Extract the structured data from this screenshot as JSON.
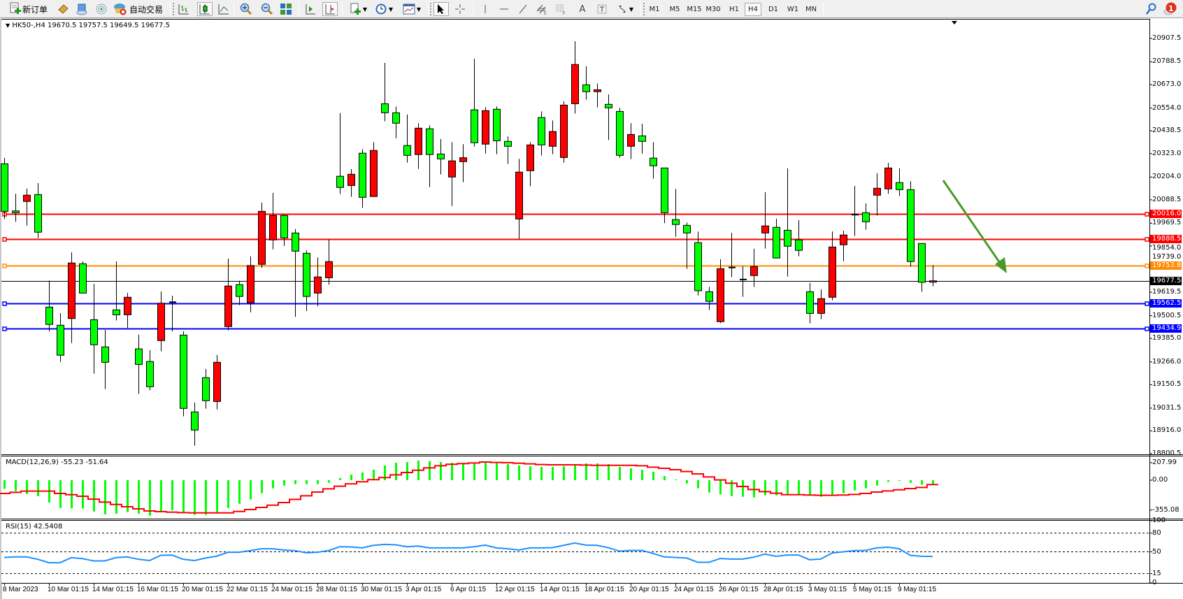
{
  "toolbar": {
    "new_order_label": "新订单",
    "auto_trading_label": "自动交易",
    "timeframes": [
      "M1",
      "M5",
      "M15",
      "M30",
      "H1",
      "H4",
      "D1",
      "W1",
      "MN"
    ],
    "active_timeframe": "H4",
    "notification_count": "1",
    "icons": [
      "new-order-icon",
      "market-watch-icon",
      "data-window-icon",
      "signals-icon",
      "auto-trading-icon",
      "bar-chart-icon",
      "candlestick-icon",
      "line-chart-icon",
      "zoom-in-icon",
      "zoom-out-icon",
      "tile-windows-icon",
      "auto-scroll-icon",
      "chart-shift-icon",
      "indicators-icon",
      "periods-icon",
      "templates-icon",
      "cursor-icon",
      "crosshair-icon",
      "vertical-line-icon",
      "horizontal-line-icon",
      "trendline-icon",
      "equidistant-channel-icon",
      "fibonacci-icon",
      "text-icon",
      "text-label-icon",
      "arrows-icon",
      "search-icon",
      "notification-icon"
    ]
  },
  "chart_data": {
    "type": "candlestick",
    "header": "HK50-,H4  19670.5 19757.5 19649.5 19677.5",
    "symbol": "HK50-",
    "timeframe": "H4",
    "colors": {
      "bull": "#ff0000",
      "bear": "#00ff00",
      "wick": "#000000",
      "macd_hist": "#00ff00",
      "macd_signal": "#ff0000",
      "rsi": "#1e90ff",
      "arrow": "#4a9a2a"
    },
    "price": {
      "ylim": [
        18797,
        21003
      ],
      "ticks": [
        "20907.5",
        "20788.5",
        "20673.0",
        "20554.0",
        "20438.5",
        "20323.0",
        "20204.0",
        "20088.5",
        "19969.5",
        "19854.0",
        "19739.0",
        "19619.5",
        "19500.5",
        "19385.0",
        "19266.0",
        "19150.5",
        "19031.5",
        "18916.0",
        "18800.5"
      ],
      "candles": [
        [
          20271,
          20301,
          19991,
          20030
        ],
        [
          20032,
          20119,
          19977,
          20023
        ],
        [
          20080,
          20145,
          19958,
          20112
        ],
        [
          20115,
          20173,
          19894,
          19924
        ],
        [
          19544,
          19679,
          19420,
          19456
        ],
        [
          19452,
          19514,
          19266,
          19300
        ],
        [
          19486,
          19822,
          19362,
          19768
        ],
        [
          19764,
          19776,
          19615,
          19615
        ],
        [
          19480,
          19662,
          19206,
          19353
        ],
        [
          19342,
          19428,
          19128,
          19264
        ],
        [
          19530,
          19776,
          19476,
          19505
        ],
        [
          19505,
          19616,
          19438,
          19594
        ],
        [
          19332,
          19404,
          19104,
          19253
        ],
        [
          19268,
          19326,
          19121,
          19140
        ],
        [
          19374,
          19623,
          19320,
          19564
        ],
        [
          19567,
          19602,
          19420,
          19569
        ],
        [
          19402,
          19421,
          18990,
          19030
        ],
        [
          19012,
          19060,
          18841,
          18920
        ],
        [
          19186,
          19230,
          19029,
          19069
        ],
        [
          19065,
          19301,
          19025,
          19264
        ],
        [
          19445,
          19790,
          19426,
          19651
        ],
        [
          19658,
          19678,
          19554,
          19598
        ],
        [
          19566,
          19802,
          19518,
          19755
        ],
        [
          19761,
          20074,
          19743,
          20030
        ],
        [
          19885,
          20124,
          19837,
          20009
        ],
        [
          20009,
          20012,
          19855,
          19895
        ],
        [
          19920,
          19940,
          19495,
          19828
        ],
        [
          19817,
          19832,
          19524,
          19598
        ],
        [
          19615,
          19796,
          19548,
          19697
        ],
        [
          19693,
          19887,
          19658,
          19775
        ],
        [
          20208,
          20528,
          20118,
          20151
        ],
        [
          20161,
          20244,
          20104,
          20218
        ],
        [
          20325,
          20346,
          20047,
          20101
        ],
        [
          20105,
          20381,
          20105,
          20339
        ],
        [
          20576,
          20783,
          20487,
          20530
        ],
        [
          20530,
          20562,
          20401,
          20477
        ],
        [
          20364,
          20521,
          20277,
          20314
        ],
        [
          20318,
          20477,
          20245,
          20452
        ],
        [
          20449,
          20466,
          20153,
          20318
        ],
        [
          20321,
          20397,
          20217,
          20296
        ],
        [
          20204,
          20381,
          20057,
          20286
        ],
        [
          20282,
          20371,
          20178,
          20302
        ],
        [
          20545,
          20805,
          20359,
          20378
        ],
        [
          20371,
          20559,
          20323,
          20541
        ],
        [
          20548,
          20562,
          20320,
          20388
        ],
        [
          20385,
          20410,
          20270,
          20360
        ],
        [
          19991,
          20296,
          19891,
          20229
        ],
        [
          20236,
          20381,
          20157,
          20367
        ],
        [
          20506,
          20537,
          20313,
          20367
        ],
        [
          20360,
          20491,
          20320,
          20435
        ],
        [
          20303,
          20587,
          20277,
          20569
        ],
        [
          20576,
          20893,
          20526,
          20775
        ],
        [
          20672,
          20766,
          20597,
          20637
        ],
        [
          20637,
          20679,
          20558,
          20647
        ],
        [
          20573,
          20623,
          20391,
          20555
        ],
        [
          20537,
          20555,
          20302,
          20314
        ],
        [
          20360,
          20477,
          20295,
          20420
        ],
        [
          20413,
          20474,
          20323,
          20385
        ],
        [
          20300,
          20381,
          20196,
          20261
        ],
        [
          20250,
          20250,
          19970,
          20023
        ],
        [
          19988,
          20144,
          19901,
          19963
        ],
        [
          19959,
          19973,
          19738,
          19920
        ],
        [
          19871,
          19927,
          19603,
          19627
        ],
        [
          19622,
          19647,
          19529,
          19573
        ],
        [
          19470,
          19787,
          19463,
          19739
        ],
        [
          19744,
          19921,
          19696,
          19745
        ],
        [
          19683,
          19752,
          19596,
          19684
        ],
        [
          19704,
          19840,
          19646,
          19750
        ],
        [
          19920,
          20127,
          19841,
          19956
        ],
        [
          19949,
          19992,
          19793,
          19793
        ],
        [
          19934,
          20248,
          19699,
          19853
        ],
        [
          19885,
          19985,
          19802,
          19832
        ],
        [
          19622,
          19666,
          19461,
          19512
        ],
        [
          19512,
          19634,
          19483,
          19587
        ],
        [
          19594,
          19928,
          19579,
          19849
        ],
        [
          19860,
          19932,
          19777,
          19910
        ],
        [
          20012,
          20159,
          19905,
          20013
        ],
        [
          20023,
          20070,
          19937,
          19977
        ],
        [
          20112,
          20223,
          20008,
          20147
        ],
        [
          20144,
          20276,
          20119,
          20250
        ],
        [
          20176,
          20248,
          20108,
          20140
        ],
        [
          20140,
          20183,
          19749,
          19775
        ],
        [
          19867,
          19867,
          19622,
          19670
        ],
        [
          19670.5,
          19757.5,
          19649.5,
          19677.5
        ]
      ],
      "hlines": [
        {
          "value": 20016.0,
          "label": "20016.0",
          "color": "#ff0000"
        },
        {
          "value": 19888.5,
          "label": "19888.5",
          "color": "#ff0000"
        },
        {
          "value": 19753.8,
          "label": "19753.8",
          "color": "#ff8c00"
        },
        {
          "value": 19562.5,
          "label": "19562.5",
          "color": "#0000ff"
        },
        {
          "value": 19434.9,
          "label": "19434.9",
          "color": "#0000ff"
        }
      ],
      "current": {
        "value": 19677.5,
        "label": "19677.5",
        "color": "#000000"
      }
    },
    "macd": {
      "title": "MACD(12,26,9) -55.23 -51.64",
      "ylim": [
        -457,
        291
      ],
      "ticks": [
        {
          "value": 207.99,
          "label": "207.99"
        },
        {
          "value": 0,
          "label": "0.00"
        },
        {
          "value": -355.08,
          "label": "-355.08"
        }
      ],
      "histogram": [
        -103,
        -130,
        -164,
        -191,
        -266,
        -330,
        -335,
        -338,
        -372,
        -405,
        -399,
        -380,
        -399,
        -421,
        -372,
        -358,
        -383,
        -413,
        -413,
        -380,
        -330,
        -280,
        -230,
        -155,
        -97,
        -64,
        -47,
        -47,
        -47,
        -31,
        25,
        67,
        92,
        125,
        175,
        208,
        216,
        233,
        225,
        216,
        208,
        191,
        200,
        208,
        208,
        191,
        175,
        166,
        158,
        158,
        166,
        183,
        200,
        200,
        191,
        158,
        141,
        125,
        100,
        50,
        8,
        -39,
        -97,
        -147,
        -169,
        -189,
        -197,
        -205,
        -180,
        -180,
        -169,
        -169,
        -180,
        -197,
        -172,
        -155,
        -122,
        -97,
        -64,
        -22,
        -6,
        -31,
        -55,
        -55.23
      ],
      "signal": [
        -158,
        -144,
        -130,
        -130,
        -130,
        -158,
        -172,
        -191,
        -225,
        -261,
        -289,
        -316,
        -341,
        -366,
        -374,
        -380,
        -385,
        -388,
        -388,
        -388,
        -388,
        -372,
        -349,
        -324,
        -297,
        -266,
        -228,
        -186,
        -141,
        -103,
        -72,
        -44,
        -19,
        6,
        31,
        64,
        92,
        119,
        147,
        172,
        189,
        197,
        205,
        216,
        211,
        208,
        202,
        194,
        186,
        183,
        183,
        183,
        180,
        177,
        177,
        177,
        177,
        172,
        155,
        141,
        125,
        103,
        75,
        39,
        3,
        -36,
        -75,
        -111,
        -136,
        -155,
        -172,
        -172,
        -177,
        -180,
        -180,
        -177,
        -169,
        -158,
        -141,
        -128,
        -114,
        -100,
        -86,
        -51.64
      ]
    },
    "rsi": {
      "title": "RSI(15) 42.5408",
      "ylim": [
        0,
        100
      ],
      "levels": [
        80,
        50,
        15
      ],
      "ticks": [
        "100",
        "80",
        "50",
        "15",
        "0"
      ],
      "values": [
        41,
        41.8,
        41.8,
        38,
        32.5,
        32.5,
        40.7,
        39,
        35.4,
        35.4,
        40.7,
        41.8,
        38,
        36,
        44.4,
        44.8,
        38,
        36,
        40,
        43,
        49.3,
        49.3,
        52,
        54.9,
        54.9,
        53,
        51.9,
        48.5,
        49.3,
        52,
        58.2,
        57.8,
        56.3,
        60.4,
        62,
        61.2,
        58.2,
        59.3,
        56.3,
        56.3,
        56.3,
        56.3,
        58.2,
        60.8,
        56.3,
        54.9,
        53,
        56.3,
        56.3,
        56.7,
        60.4,
        64.2,
        60.8,
        60.4,
        56.7,
        51.1,
        52.2,
        52.2,
        47.4,
        41.8,
        41,
        40,
        33.2,
        33.2,
        39.2,
        38.4,
        38.4,
        41.4,
        46.3,
        42.9,
        44.8,
        44.8,
        37.3,
        38.4,
        48.1,
        50,
        51.9,
        52.2,
        56.3,
        57.5,
        54.9,
        44.4,
        42.9,
        42.54
      ]
    },
    "time_labels": [
      {
        "bar": 0,
        "label": "8 Mar 2023"
      },
      {
        "bar": 4,
        "label": "10 Mar 01:15"
      },
      {
        "bar": 8,
        "label": "14 Mar 01:15"
      },
      {
        "bar": 12,
        "label": "16 Mar 01:15"
      },
      {
        "bar": 16,
        "label": "20 Mar 01:15"
      },
      {
        "bar": 20,
        "label": "22 Mar 01:15"
      },
      {
        "bar": 24,
        "label": "24 Mar 01:15"
      },
      {
        "bar": 28,
        "label": "28 Mar 01:15"
      },
      {
        "bar": 32,
        "label": "30 Mar 01:15"
      },
      {
        "bar": 36,
        "label": "3 Apr 01:15"
      },
      {
        "bar": 40,
        "label": "6 Apr 01:15"
      },
      {
        "bar": 44,
        "label": "12 Apr 01:15"
      },
      {
        "bar": 48,
        "label": "14 Apr 01:15"
      },
      {
        "bar": 52,
        "label": "18 Apr 01:15"
      },
      {
        "bar": 56,
        "label": "20 Apr 01:15"
      },
      {
        "bar": 60,
        "label": "24 Apr 01:15"
      },
      {
        "bar": 64,
        "label": "26 Apr 01:15"
      },
      {
        "bar": 68,
        "label": "28 Apr 01:15"
      },
      {
        "bar": 72,
        "label": "3 May 01:15"
      },
      {
        "bar": 76,
        "label": "5 May 01:15"
      },
      {
        "bar": 80,
        "label": "9 May 01:15"
      }
    ]
  }
}
